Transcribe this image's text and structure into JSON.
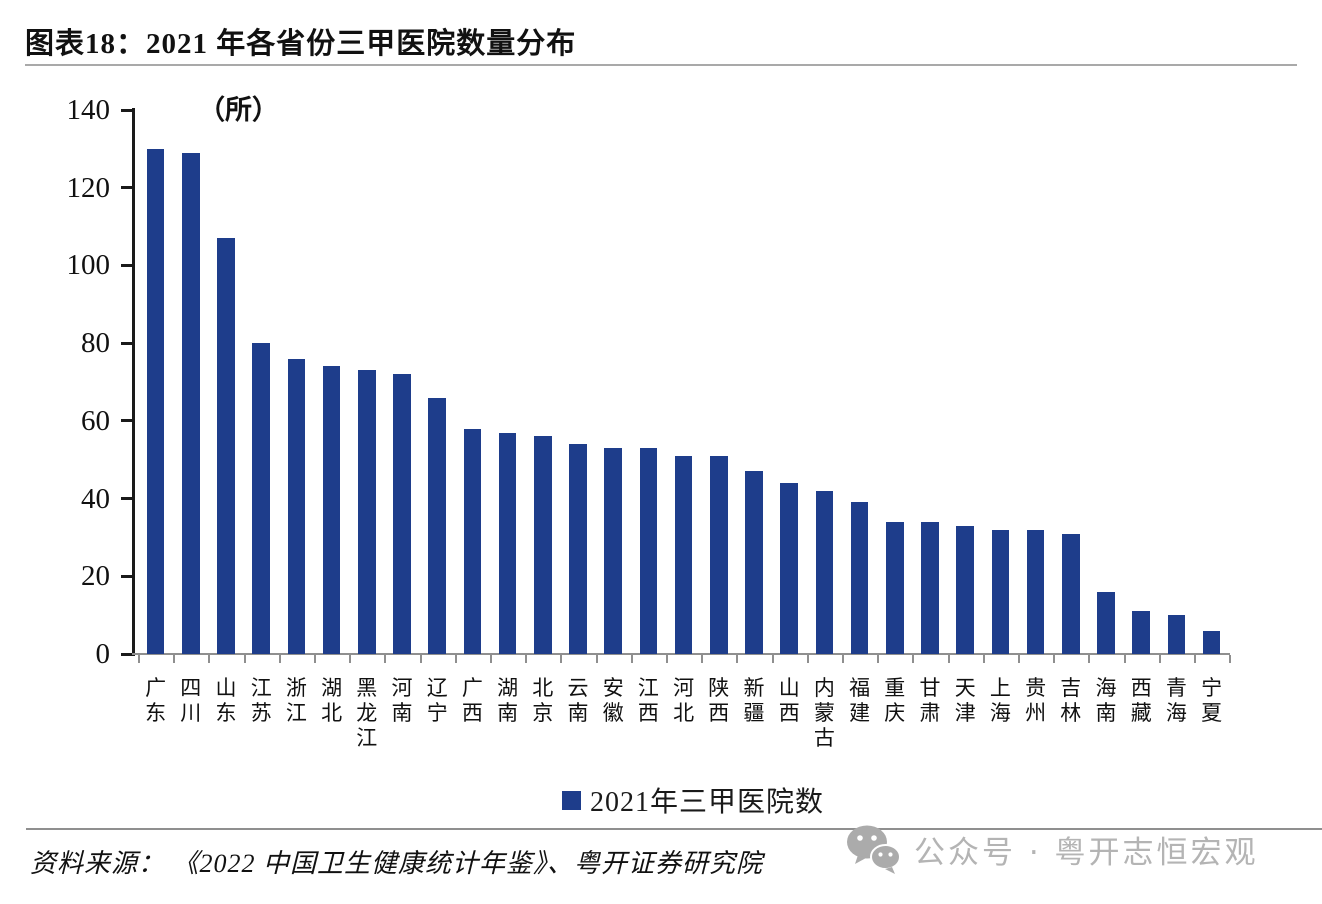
{
  "header": {
    "title": "图表18：2021 年各省份三甲医院数量分布"
  },
  "chart_data": {
    "type": "bar",
    "title": "图表18：2021 年各省份三甲医院数量分布",
    "unit_label": "（所）",
    "categories": [
      "广东",
      "四川",
      "山东",
      "江苏",
      "浙江",
      "湖北",
      "黑龙江",
      "河南",
      "辽宁",
      "广西",
      "湖南",
      "北京",
      "云南",
      "安徽",
      "江西",
      "河北",
      "陕西",
      "新疆",
      "山西",
      "内蒙古",
      "福建",
      "重庆",
      "甘肃",
      "天津",
      "上海",
      "贵州",
      "吉林",
      "海南",
      "西藏",
      "青海",
      "宁夏"
    ],
    "values": [
      130,
      129,
      107,
      80,
      76,
      74,
      73,
      72,
      66,
      58,
      57,
      56,
      54,
      53,
      53,
      51,
      51,
      47,
      44,
      42,
      39,
      34,
      34,
      33,
      32,
      32,
      31,
      16,
      11,
      10,
      6
    ],
    "ylim": [
      0,
      140
    ],
    "ytick_step": 20,
    "yticks": [
      0,
      20,
      40,
      60,
      80,
      100,
      120,
      140
    ],
    "xlabel": "",
    "ylabel": "",
    "grid": false,
    "bar_color": "#1e3d8b",
    "legend_position": "bottom-center",
    "legend": [
      "2021年三甲医院数"
    ]
  },
  "legend": {
    "label": "2021年三甲医院数"
  },
  "footer": {
    "source": "资料来源： 《2022 中国卫生健康统计年鉴》、粤开证券研究院"
  },
  "watermark": {
    "icon": "wechat-icon",
    "text": "公众号 · 粤开志恒宏观"
  },
  "colors": {
    "bar": "#1e3d8b",
    "axis": "#1a1a1a",
    "category_axis": "#8f8f8f",
    "divider": "#a9a9a9",
    "watermark": "#b4b4b4"
  }
}
